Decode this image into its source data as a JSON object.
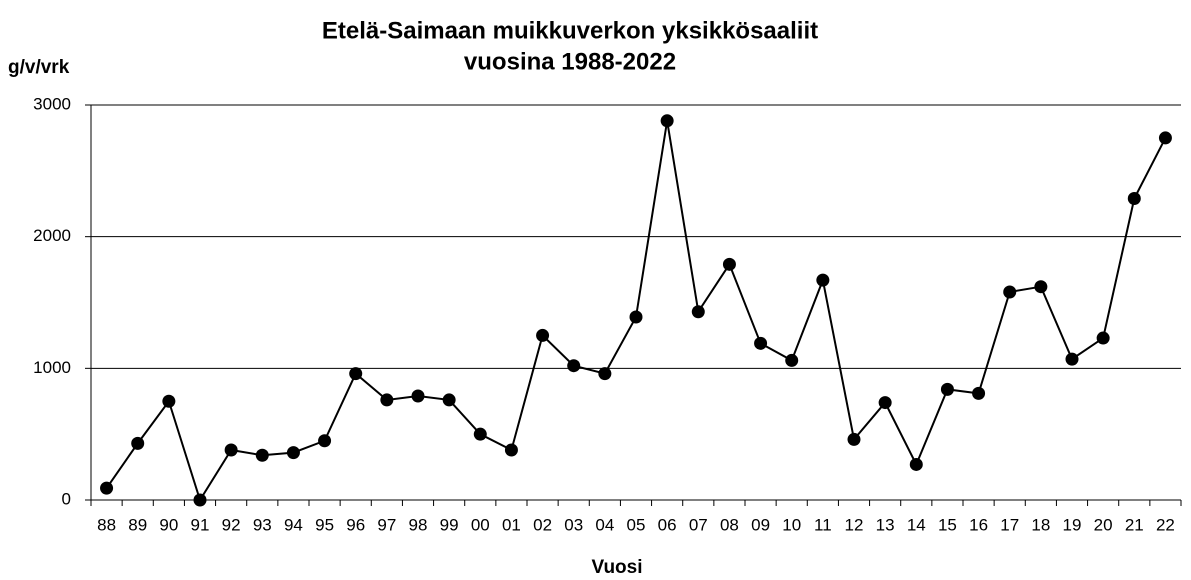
{
  "chart_data": {
    "type": "line",
    "title": [
      "Etelä-Saimaan muikkuverkon yksikkösaaliit",
      "vuosina 1988-2022"
    ],
    "y_label": "g/v/vrk",
    "x_label": "Vuosi",
    "categories": [
      "88",
      "89",
      "90",
      "91",
      "92",
      "93",
      "94",
      "95",
      "96",
      "97",
      "98",
      "99",
      "00",
      "01",
      "02",
      "03",
      "04",
      "05",
      "06",
      "07",
      "08",
      "09",
      "10",
      "11",
      "12",
      "13",
      "14",
      "15",
      "16",
      "17",
      "18",
      "19",
      "20",
      "21",
      "22"
    ],
    "values": [
      90,
      430,
      750,
      0,
      380,
      340,
      360,
      450,
      960,
      760,
      790,
      760,
      500,
      380,
      1250,
      1020,
      960,
      1390,
      2880,
      1430,
      1790,
      1190,
      1060,
      1670,
      460,
      740,
      270,
      840,
      810,
      1580,
      1620,
      1070,
      1230,
      2290,
      2750
    ],
    "color": "#000000",
    "ylim": [
      0,
      3000
    ],
    "yticks": [
      0,
      1000,
      2000,
      3000
    ],
    "grid": true
  }
}
